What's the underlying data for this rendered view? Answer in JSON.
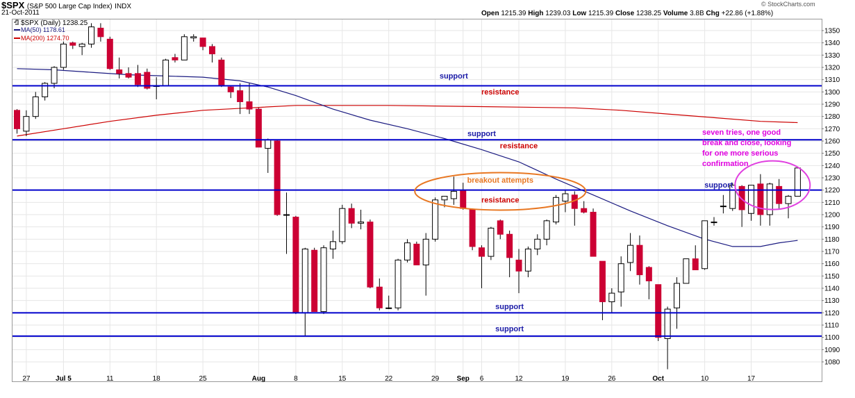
{
  "header": {
    "symbol": "$SPX",
    "name": "(S&P 500 Large Cap Index)",
    "exchange": "INDX",
    "date": "21-Oct-2011",
    "brand": "© StockCharts.com",
    "open_label": "Open",
    "open": "1215.39",
    "high_label": "High",
    "high": "1239.03",
    "low_label": "Low",
    "low": "1215.39",
    "close_label": "Close",
    "close": "1238.25",
    "volume_label": "Volume",
    "volume": "3.8B",
    "chg_label": "Chg",
    "chg": "+22.86 (+1.88%)"
  },
  "legend": {
    "price": "$SPX (Daily) 1238.25",
    "ma50": "MA(50) 1178.61",
    "ma200": "MA(200) 1274.70"
  },
  "colors": {
    "up_fill": "#ffffff",
    "down_fill": "#cc0033",
    "ma50": "#1a1a80",
    "ma200": "#cc0000",
    "hline": "#0000cc",
    "support_text": "#1a1aa6",
    "resistance_text": "#cc0000",
    "ellipse_orange": "#e87722",
    "ellipse_magenta": "#e040e0",
    "magenta_text": "#e000e0",
    "orange_text": "#e87722"
  },
  "chart_data": {
    "type": "candlestick",
    "ylim": [
      1070,
      1355
    ],
    "yticks": [
      1080,
      1090,
      1100,
      1110,
      1120,
      1130,
      1140,
      1150,
      1160,
      1170,
      1180,
      1190,
      1200,
      1210,
      1220,
      1230,
      1240,
      1250,
      1260,
      1270,
      1280,
      1290,
      1300,
      1310,
      1320,
      1330,
      1340,
      1350
    ],
    "xticks": [
      {
        "label": "27",
        "i": 1,
        "bold": false
      },
      {
        "label": "Jul 5",
        "i": 5,
        "bold": true
      },
      {
        "label": "11",
        "i": 10,
        "bold": false
      },
      {
        "label": "18",
        "i": 15,
        "bold": false
      },
      {
        "label": "25",
        "i": 20,
        "bold": false
      },
      {
        "label": "Aug",
        "i": 26,
        "bold": true
      },
      {
        "label": "8",
        "i": 30,
        "bold": false
      },
      {
        "label": "15",
        "i": 35,
        "bold": false
      },
      {
        "label": "22",
        "i": 40,
        "bold": false
      },
      {
        "label": "29",
        "i": 45,
        "bold": false
      },
      {
        "label": "Sep",
        "i": 48,
        "bold": true
      },
      {
        "label": "6",
        "i": 50,
        "bold": false
      },
      {
        "label": "12",
        "i": 54,
        "bold": false
      },
      {
        "label": "19",
        "i": 59,
        "bold": false
      },
      {
        "label": "26",
        "i": 64,
        "bold": false
      },
      {
        "label": "Oct",
        "i": 69,
        "bold": true
      },
      {
        "label": "10",
        "i": 74,
        "bold": false
      },
      {
        "label": "17",
        "i": 79,
        "bold": false
      }
    ],
    "candles": [
      {
        "o": 1285,
        "h": 1286,
        "l": 1266,
        "c": 1270
      },
      {
        "o": 1268,
        "h": 1285,
        "l": 1264,
        "c": 1280
      },
      {
        "o": 1280,
        "h": 1300,
        "l": 1278,
        "c": 1296
      },
      {
        "o": 1296,
        "h": 1308,
        "l": 1293,
        "c": 1307
      },
      {
        "o": 1307,
        "h": 1321,
        "l": 1303,
        "c": 1320
      },
      {
        "o": 1320,
        "h": 1341,
        "l": 1318,
        "c": 1339
      },
      {
        "o": 1340,
        "h": 1341,
        "l": 1335,
        "c": 1338
      },
      {
        "o": 1337,
        "h": 1340,
        "l": 1330,
        "c": 1339
      },
      {
        "o": 1339,
        "h": 1356,
        "l": 1336,
        "c": 1353
      },
      {
        "o": 1352,
        "h": 1356,
        "l": 1341,
        "c": 1345
      },
      {
        "o": 1343,
        "h": 1345,
        "l": 1318,
        "c": 1319
      },
      {
        "o": 1318,
        "h": 1328,
        "l": 1311,
        "c": 1315
      },
      {
        "o": 1315,
        "h": 1320,
        "l": 1311,
        "c": 1312
      },
      {
        "o": 1315,
        "h": 1322,
        "l": 1304,
        "c": 1306
      },
      {
        "o": 1316,
        "h": 1319,
        "l": 1302,
        "c": 1303
      },
      {
        "o": 1305,
        "h": 1312,
        "l": 1294,
        "c": 1305
      },
      {
        "o": 1305,
        "h": 1327,
        "l": 1305,
        "c": 1326
      },
      {
        "o": 1328,
        "h": 1331,
        "l": 1324,
        "c": 1326
      },
      {
        "o": 1326,
        "h": 1347,
        "l": 1326,
        "c": 1345
      },
      {
        "o": 1344,
        "h": 1347,
        "l": 1341,
        "c": 1345
      },
      {
        "o": 1344,
        "h": 1344,
        "l": 1334,
        "c": 1337
      },
      {
        "o": 1337,
        "h": 1339,
        "l": 1324,
        "c": 1331
      },
      {
        "o": 1326,
        "h": 1328,
        "l": 1304,
        "c": 1305
      },
      {
        "o": 1304,
        "h": 1305,
        "l": 1295,
        "c": 1300
      },
      {
        "o": 1301,
        "h": 1307,
        "l": 1282,
        "c": 1292
      },
      {
        "o": 1292,
        "h": 1307,
        "l": 1282,
        "c": 1286
      },
      {
        "o": 1286,
        "h": 1287,
        "l": 1255,
        "c": 1255
      },
      {
        "o": 1254,
        "h": 1262,
        "l": 1234,
        "c": 1261
      },
      {
        "o": 1260,
        "h": 1261,
        "l": 1199,
        "c": 1200
      },
      {
        "o": 1200,
        "h": 1218,
        "l": 1168,
        "c": 1200
      },
      {
        "o": 1198,
        "h": 1199,
        "l": 1119,
        "c": 1120
      },
      {
        "o": 1120,
        "h": 1173,
        "l": 1101,
        "c": 1172
      },
      {
        "o": 1171,
        "h": 1173,
        "l": 1121,
        "c": 1121
      },
      {
        "o": 1121,
        "h": 1175,
        "l": 1119,
        "c": 1173
      },
      {
        "o": 1172,
        "h": 1187,
        "l": 1164,
        "c": 1178
      },
      {
        "o": 1178,
        "h": 1208,
        "l": 1176,
        "c": 1205
      },
      {
        "o": 1205,
        "h": 1209,
        "l": 1189,
        "c": 1193
      },
      {
        "o": 1193,
        "h": 1204,
        "l": 1188,
        "c": 1194
      },
      {
        "o": 1194,
        "h": 1196,
        "l": 1140,
        "c": 1141
      },
      {
        "o": 1141,
        "h": 1148,
        "l": 1122,
        "c": 1124
      },
      {
        "o": 1124,
        "h": 1134,
        "l": 1123,
        "c": 1124
      },
      {
        "o": 1124,
        "h": 1164,
        "l": 1122,
        "c": 1163
      },
      {
        "o": 1163,
        "h": 1180,
        "l": 1161,
        "c": 1177
      },
      {
        "o": 1176,
        "h": 1178,
        "l": 1159,
        "c": 1159
      },
      {
        "o": 1159,
        "h": 1185,
        "l": 1134,
        "c": 1180
      },
      {
        "o": 1180,
        "h": 1214,
        "l": 1178,
        "c": 1212
      },
      {
        "o": 1212,
        "h": 1215,
        "l": 1206,
        "c": 1215
      },
      {
        "o": 1213,
        "h": 1231,
        "l": 1208,
        "c": 1219
      },
      {
        "o": 1220,
        "h": 1226,
        "l": 1204,
        "c": 1205
      },
      {
        "o": 1204,
        "h": 1204,
        "l": 1171,
        "c": 1174
      },
      {
        "o": 1173,
        "h": 1175,
        "l": 1140,
        "c": 1166
      },
      {
        "o": 1166,
        "h": 1190,
        "l": 1163,
        "c": 1189
      },
      {
        "o": 1195,
        "h": 1196,
        "l": 1180,
        "c": 1184
      },
      {
        "o": 1184,
        "h": 1187,
        "l": 1149,
        "c": 1165
      },
      {
        "o": 1163,
        "h": 1172,
        "l": 1136,
        "c": 1154
      },
      {
        "o": 1154,
        "h": 1174,
        "l": 1149,
        "c": 1172
      },
      {
        "o": 1172,
        "h": 1184,
        "l": 1167,
        "c": 1180
      },
      {
        "o": 1180,
        "h": 1196,
        "l": 1175,
        "c": 1195
      },
      {
        "o": 1194,
        "h": 1216,
        "l": 1192,
        "c": 1214
      },
      {
        "o": 1211,
        "h": 1220,
        "l": 1202,
        "c": 1217
      },
      {
        "o": 1216,
        "h": 1219,
        "l": 1191,
        "c": 1205
      },
      {
        "o": 1205,
        "h": 1211,
        "l": 1201,
        "c": 1202
      },
      {
        "o": 1202,
        "h": 1205,
        "l": 1166,
        "c": 1166
      },
      {
        "o": 1162,
        "h": 1162,
        "l": 1114,
        "c": 1129
      },
      {
        "o": 1129,
        "h": 1140,
        "l": 1120,
        "c": 1136
      },
      {
        "o": 1137,
        "h": 1166,
        "l": 1125,
        "c": 1160
      },
      {
        "o": 1161,
        "h": 1185,
        "l": 1154,
        "c": 1175
      },
      {
        "o": 1175,
        "h": 1183,
        "l": 1143,
        "c": 1151
      },
      {
        "o": 1157,
        "h": 1158,
        "l": 1131,
        "c": 1146
      },
      {
        "o": 1143,
        "h": 1143,
        "l": 1097,
        "c": 1100
      },
      {
        "o": 1099,
        "h": 1125,
        "l": 1074,
        "c": 1123
      },
      {
        "o": 1124,
        "h": 1149,
        "l": 1107,
        "c": 1144
      },
      {
        "o": 1144,
        "h": 1164,
        "l": 1144,
        "c": 1164
      },
      {
        "o": 1164,
        "h": 1175,
        "l": 1155,
        "c": 1155
      },
      {
        "o": 1156,
        "h": 1195,
        "l": 1155,
        "c": 1195
      },
      {
        "o": 1194,
        "h": 1198,
        "l": 1191,
        "c": 1194
      },
      {
        "o": 1207,
        "h": 1216,
        "l": 1201,
        "c": 1207
      },
      {
        "o": 1205,
        "h": 1226,
        "l": 1203,
        "c": 1224
      },
      {
        "o": 1223,
        "h": 1224,
        "l": 1190,
        "c": 1204
      },
      {
        "o": 1201,
        "h": 1224,
        "l": 1195,
        "c": 1224
      },
      {
        "o": 1225,
        "h": 1233,
        "l": 1191,
        "c": 1200
      },
      {
        "o": 1200,
        "h": 1226,
        "l": 1191,
        "c": 1225
      },
      {
        "o": 1223,
        "h": 1229,
        "l": 1205,
        "c": 1209
      },
      {
        "o": 1209,
        "h": 1216,
        "l": 1197,
        "c": 1215
      },
      {
        "o": 1215,
        "h": 1239,
        "l": 1215,
        "c": 1238
      }
    ],
    "ma50": [
      [
        0,
        1319
      ],
      [
        4,
        1318
      ],
      [
        8,
        1316
      ],
      [
        12,
        1314
      ],
      [
        16,
        1313
      ],
      [
        20,
        1312
      ],
      [
        24,
        1309
      ],
      [
        27,
        1304
      ],
      [
        30,
        1297
      ],
      [
        34,
        1286
      ],
      [
        38,
        1277
      ],
      [
        42,
        1270
      ],
      [
        46,
        1262
      ],
      [
        50,
        1253
      ],
      [
        54,
        1243
      ],
      [
        58,
        1229
      ],
      [
        62,
        1216
      ],
      [
        66,
        1203
      ],
      [
        70,
        1191
      ],
      [
        74,
        1180
      ],
      [
        77,
        1174
      ],
      [
        80,
        1174
      ],
      [
        82,
        1177
      ],
      [
        84,
        1179
      ]
    ],
    "ma200": [
      [
        0,
        1264
      ],
      [
        5,
        1270
      ],
      [
        10,
        1276
      ],
      [
        15,
        1281
      ],
      [
        20,
        1285
      ],
      [
        25,
        1287
      ],
      [
        30,
        1289
      ],
      [
        40,
        1289
      ],
      [
        50,
        1288
      ],
      [
        60,
        1287
      ],
      [
        65,
        1285
      ],
      [
        70,
        1282
      ],
      [
        75,
        1279
      ],
      [
        80,
        1276
      ],
      [
        84,
        1275
      ]
    ],
    "hlines": [
      1305,
      1261,
      1220,
      1120,
      1101
    ],
    "annotations": [
      {
        "id": "support-1305",
        "text": "support",
        "kind": "support",
        "i": 47,
        "y": 1311
      },
      {
        "id": "resistance-1305",
        "text": "resistance",
        "kind": "resistance",
        "i": 52,
        "y": 1298
      },
      {
        "id": "support-1261",
        "text": "support",
        "kind": "support",
        "i": 50,
        "y": 1264
      },
      {
        "id": "resistance-1261",
        "text": "resistance",
        "kind": "resistance",
        "i": 54,
        "y": 1254
      },
      {
        "id": "breakout",
        "text": "breakout attempts",
        "kind": "orange",
        "i": 52,
        "y": 1226
      },
      {
        "id": "resistance-1220",
        "text": "resistance",
        "kind": "resistance",
        "i": 52,
        "y": 1210
      },
      {
        "id": "support-1220",
        "text": "support",
        "kind": "support",
        "i": 75.5,
        "y": 1222
      },
      {
        "id": "support-1120",
        "text": "support",
        "kind": "support",
        "i": 53,
        "y": 1123
      },
      {
        "id": "support-1101",
        "text": "support",
        "kind": "support",
        "i": 53,
        "y": 1105
      }
    ],
    "note_lines": [
      "seven tries, one good",
      "break and close, looking",
      "for one more serious",
      "confirmation"
    ],
    "ellipses": [
      {
        "id": "breakout-ellipse",
        "i": 52,
        "y": 1219,
        "rx": 123,
        "ry": 27,
        "kind": "orange"
      },
      {
        "id": "confirmation-ellipse",
        "i": 81.3,
        "y": 1224,
        "rx": 54,
        "ry": 35,
        "kind": "magenta"
      }
    ]
  }
}
